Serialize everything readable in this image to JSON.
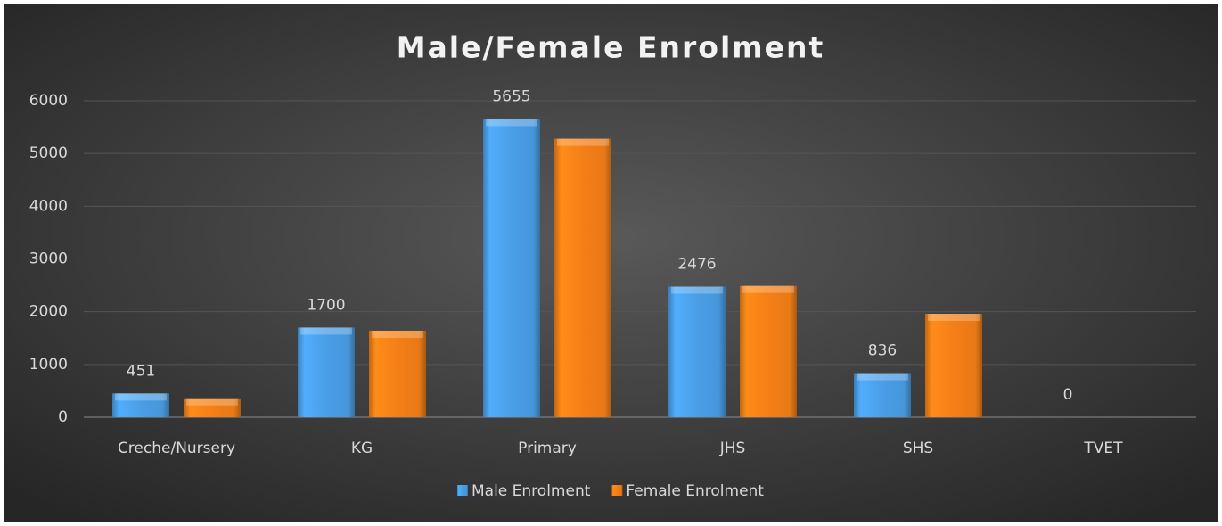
{
  "chart_data": {
    "type": "bar",
    "title": "Male/Female Enrolment",
    "categories": [
      "Creche/Nursery",
      "KG",
      "Primary",
      "JHS",
      "SHS",
      "TVET"
    ],
    "series": [
      {
        "name": "Male Enrolment",
        "color": "#4a9ee6",
        "values": [
          451,
          1700,
          5655,
          2476,
          836,
          0
        ],
        "data_labels": true
      },
      {
        "name": "Female Enrolment",
        "color": "#f47f17",
        "values": [
          360,
          1640,
          5280,
          2490,
          1960,
          0
        ],
        "data_labels": false
      }
    ],
    "ylim": [
      0,
      6000
    ],
    "yticks": [
      0,
      1000,
      2000,
      3000,
      4000,
      5000,
      6000
    ],
    "grid": true,
    "legend": "bottom"
  }
}
